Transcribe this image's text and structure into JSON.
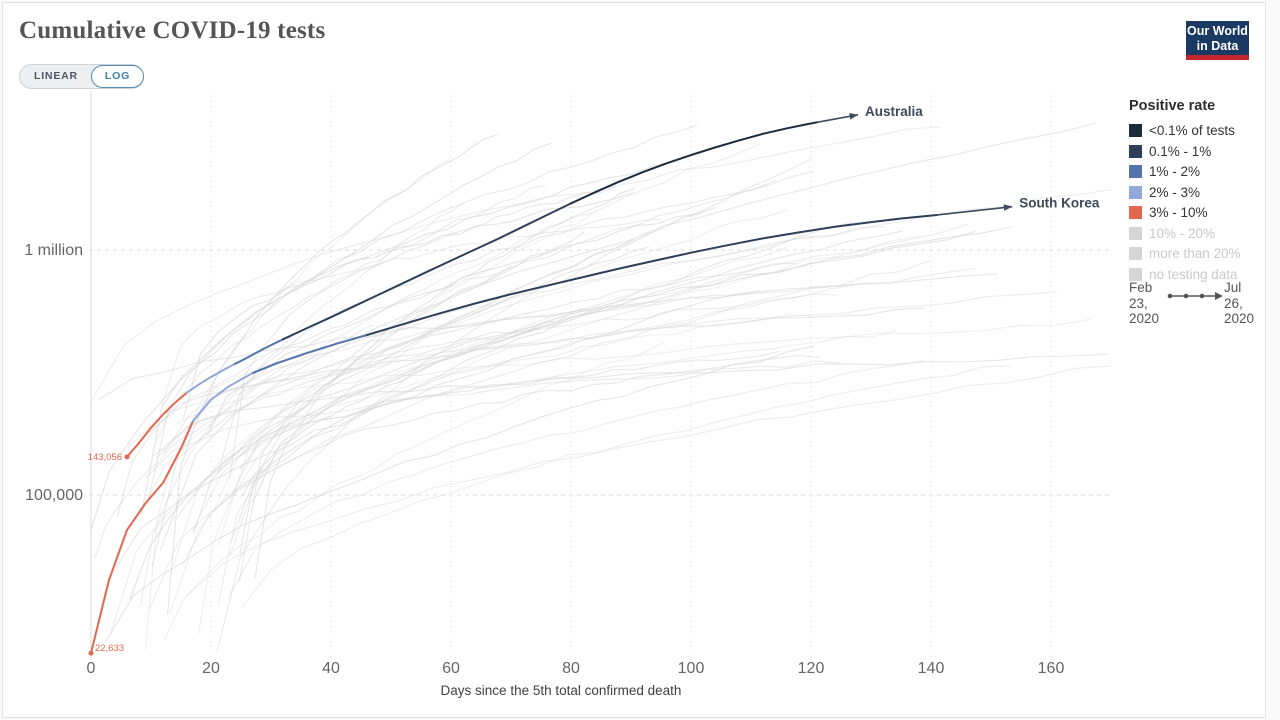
{
  "header": {
    "title": "Cumulative COVID-19 tests",
    "scale_toggle": {
      "linear_label": "LINEAR",
      "log_label": "LOG",
      "selected": "LOG"
    },
    "logo": {
      "line1": "Our World",
      "line2": "in Data",
      "bg": "#1a3a63",
      "accent": "#c5262c"
    }
  },
  "legend": {
    "title": "Positive rate",
    "items": [
      {
        "label": "<0.1% of tests",
        "color": "#1b2c3d",
        "muted": false
      },
      {
        "label": "0.1% - 1%",
        "color": "#2e4057",
        "muted": false
      },
      {
        "label": "1% - 2%",
        "color": "#5674aa",
        "muted": false
      },
      {
        "label": "2% - 3%",
        "color": "#91a8d8",
        "muted": false
      },
      {
        "label": "3% - 10%",
        "color": "#e4674f",
        "muted": false
      },
      {
        "label": "10% - 20%",
        "color": "#d6d6d6",
        "muted": true
      },
      {
        "label": "more than 20%",
        "color": "#d6d6d6",
        "muted": true
      },
      {
        "label": "no testing data",
        "color": "#d6d6d6",
        "muted": true
      }
    ]
  },
  "timeline": {
    "start": "Feb 23, 2020",
    "end": "Jul 26, 2020"
  },
  "chart_data": {
    "type": "line",
    "title": "Cumulative COVID-19 tests",
    "xlabel": "Days since the 5th total confirmed death",
    "x_ticks": [
      0,
      20,
      40,
      60,
      80,
      100,
      120,
      140,
      160
    ],
    "x_range": [
      0,
      170
    ],
    "y_scale": "log",
    "y_ticks": [
      {
        "label": "1 million",
        "value": 1000000
      },
      {
        "label": "100,000",
        "value": 100000
      }
    ],
    "grid": true,
    "legend_position": "right",
    "annotation_color": "#3e4c5b",
    "series": [
      {
        "name": "Australia",
        "start_label": "143,056",
        "start_label_side": "left",
        "label_day": 129,
        "label_value": 3700000,
        "points": [
          [
            6,
            143056
          ],
          [
            8,
            163000
          ],
          [
            10,
            188000
          ],
          [
            12,
            213000
          ],
          [
            14,
            238000
          ],
          [
            16,
            262000
          ],
          [
            18,
            283000
          ],
          [
            20,
            303000
          ],
          [
            22,
            323000
          ],
          [
            24,
            343000
          ],
          [
            26,
            363000
          ],
          [
            28,
            386000
          ],
          [
            30,
            409000
          ],
          [
            32,
            432000
          ],
          [
            36,
            480000
          ],
          [
            40,
            532000
          ],
          [
            44,
            592000
          ],
          [
            48,
            658000
          ],
          [
            52,
            732000
          ],
          [
            56,
            815000
          ],
          [
            60,
            905000
          ],
          [
            64,
            1005000
          ],
          [
            68,
            1115000
          ],
          [
            72,
            1245000
          ],
          [
            76,
            1390000
          ],
          [
            80,
            1550000
          ],
          [
            84,
            1720000
          ],
          [
            88,
            1900000
          ],
          [
            92,
            2080000
          ],
          [
            96,
            2260000
          ],
          [
            100,
            2440000
          ],
          [
            104,
            2620000
          ],
          [
            108,
            2800000
          ],
          [
            112,
            2980000
          ],
          [
            116,
            3140000
          ],
          [
            119,
            3250000
          ],
          [
            121,
            3320000
          ]
        ],
        "segments": [
          {
            "end_day": 16,
            "rate": "3% - 10%",
            "color": "#e4674f"
          },
          {
            "end_day": 24,
            "rate": "2% - 3%",
            "color": "#91a8d8"
          },
          {
            "end_day": 32,
            "rate": "1% - 2%",
            "color": "#5674aa"
          },
          {
            "end_day": 80,
            "rate": "0.1% - 1%",
            "color": "#2e4057"
          },
          {
            "end_day": 121,
            "rate": "<0.1% of tests",
            "color": "#1b2c3d"
          }
        ]
      },
      {
        "name": "South Korea",
        "start_label": "22,633",
        "start_label_side": "right",
        "label_day": 154.7,
        "label_value": 1560000,
        "points": [
          [
            0,
            22633
          ],
          [
            3,
            45000
          ],
          [
            6,
            72000
          ],
          [
            9,
            92000
          ],
          [
            12,
            112000
          ],
          [
            15,
            155000
          ],
          [
            17,
            200000
          ],
          [
            20,
            245000
          ],
          [
            23,
            278000
          ],
          [
            27,
            315000
          ],
          [
            31,
            345000
          ],
          [
            36,
            380000
          ],
          [
            41,
            415000
          ],
          [
            46,
            450000
          ],
          [
            52,
            498000
          ],
          [
            58,
            550000
          ],
          [
            64,
            605000
          ],
          [
            70,
            660000
          ],
          [
            76,
            715000
          ],
          [
            82,
            775000
          ],
          [
            88,
            840000
          ],
          [
            94,
            905000
          ],
          [
            100,
            975000
          ],
          [
            106,
            1045000
          ],
          [
            112,
            1115000
          ],
          [
            118,
            1180000
          ],
          [
            124,
            1245000
          ],
          [
            130,
            1300000
          ],
          [
            135,
            1345000
          ],
          [
            141,
            1390000
          ]
        ],
        "segments": [
          {
            "end_day": 17,
            "rate": "3% - 10%",
            "color": "#e4674f"
          },
          {
            "end_day": 27,
            "rate": "2% - 3%",
            "color": "#91a8d8"
          },
          {
            "end_day": 46,
            "rate": "1% - 2%",
            "color": "#5674aa"
          },
          {
            "end_day": 141,
            "rate": "0.1% - 1%",
            "color": "#2e4057"
          }
        ]
      }
    ],
    "background_countries": {
      "count": 58,
      "seed": 11,
      "color": "#d6d6d6",
      "note": "unlabeled faded country lines"
    }
  }
}
